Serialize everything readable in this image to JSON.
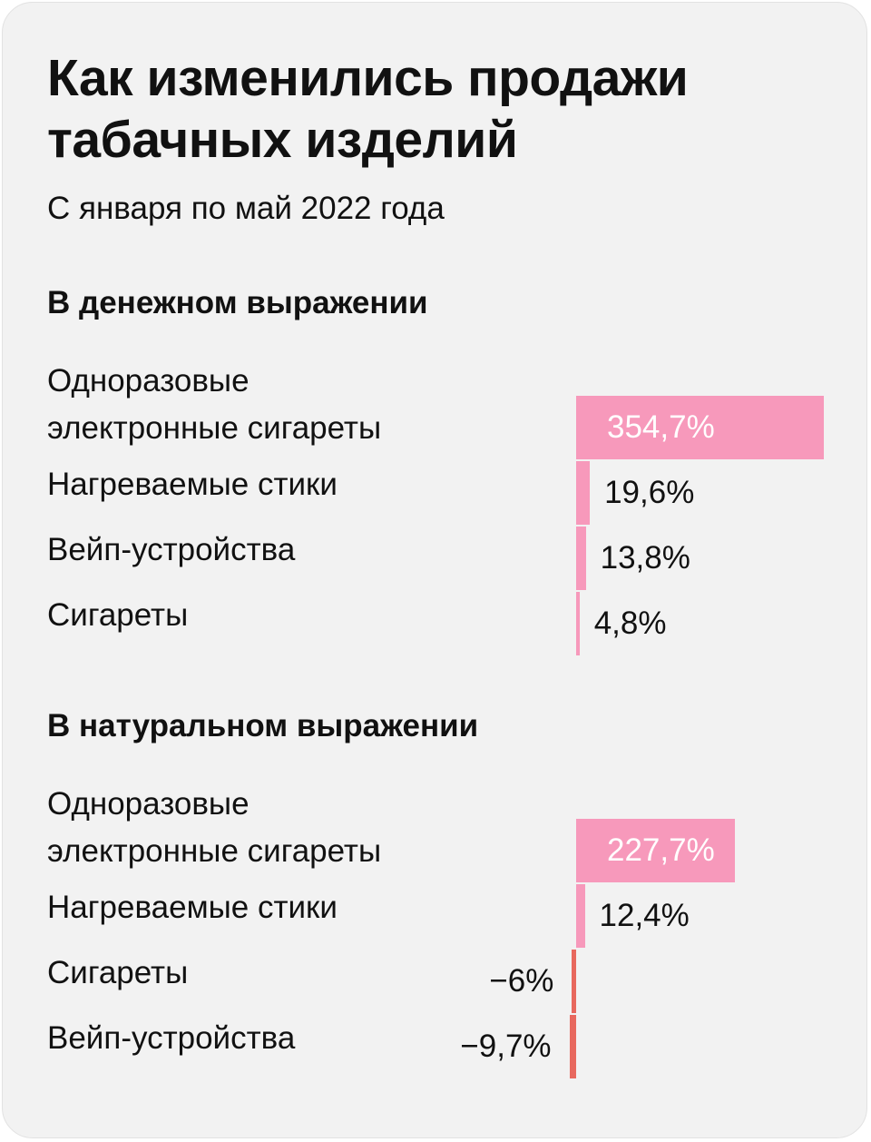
{
  "title": "Как изменились продажи табачных изделий",
  "subtitle": "С января по май 2022 года",
  "colors": {
    "positive": "#f799bb",
    "negative": "#e8685e",
    "background": "#f2f2f2"
  },
  "chart_data": [
    {
      "type": "bar",
      "title": "В денежном выражении",
      "categories": [
        "Одноразовые электронные сигареты",
        "Нагреваемые стики",
        "Вейп-устройства",
        "Сигареты"
      ],
      "values": [
        354.7,
        19.6,
        13.8,
        4.8
      ],
      "value_labels": [
        "354,7%",
        "19,6%",
        "13,8%",
        "4,8%"
      ],
      "unit": "%"
    },
    {
      "type": "bar",
      "title": "В натуральном выражении",
      "categories": [
        "Одноразовые электронные сигареты",
        "Нагреваемые стики",
        "Сигареты",
        "Вейп-устройства"
      ],
      "values": [
        227.7,
        12.4,
        -6,
        -9.7
      ],
      "value_labels": [
        "227,7%",
        "12,4%",
        "−6%",
        "−9,7%"
      ],
      "unit": "%"
    }
  ]
}
